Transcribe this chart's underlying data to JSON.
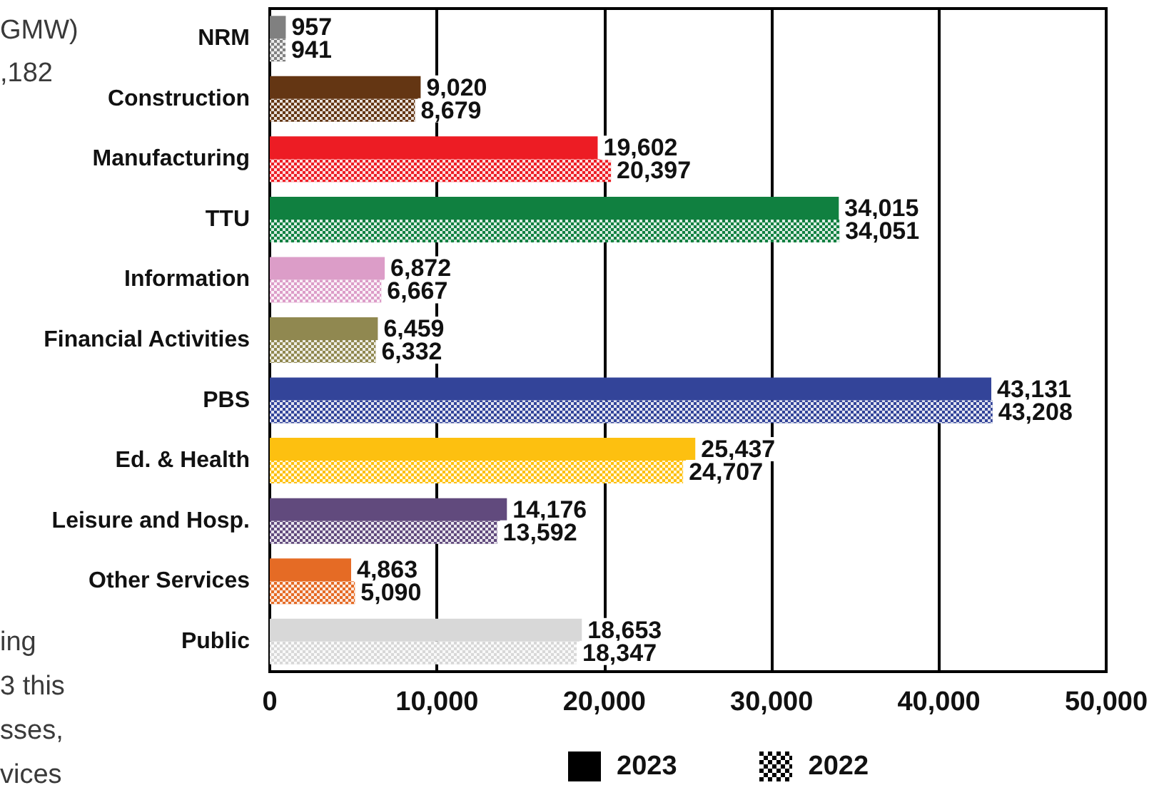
{
  "chart_data": {
    "type": "bar",
    "orientation": "horizontal",
    "categories": [
      "NRM",
      "Construction",
      "Manufacturing",
      "TTU",
      "Information",
      "Financial Activities",
      "PBS",
      "Ed. & Health",
      "Leisure and Hosp.",
      "Other Services",
      "Public"
    ],
    "series": [
      {
        "name": "2023",
        "color": "#000000",
        "colors": [
          "#808080",
          "#643613",
          "#ed1c24",
          "#108040",
          "#dc9dc8",
          "#908850",
          "#334499",
          "#fdc010",
          "#614a7d",
          "#e56b25",
          "#d8d8d8"
        ],
        "values": [
          957,
          9020,
          19602,
          34015,
          6872,
          6459,
          43131,
          25437,
          14176,
          4863,
          18653
        ],
        "value_labels": [
          "957",
          "9,020",
          "19,602",
          "34,015",
          "6,872",
          "6,459",
          "43,131",
          "25,437",
          "14,176",
          "4,863",
          "18,653"
        ]
      },
      {
        "name": "2022",
        "color": "#000000",
        "colors": [
          "#808080",
          "#643613",
          "#ed1c24",
          "#108040",
          "#dc9dc8",
          "#908850",
          "#334499",
          "#fdc010",
          "#614a7d",
          "#e56b25",
          "#d8d8d8"
        ],
        "values": [
          941,
          8679,
          20397,
          34051,
          6667,
          6332,
          43208,
          24707,
          13592,
          5090,
          18347
        ],
        "value_labels": [
          "941",
          "8,679",
          "20,397",
          "34,051",
          "6,667",
          "6,332",
          "43,208",
          "24,707",
          "13,592",
          "5,090",
          "18,347"
        ]
      }
    ],
    "xlim": [
      0,
      50000
    ],
    "xticks": [
      {
        "value": 0,
        "label": "0"
      },
      {
        "value": 10000,
        "label": "10,000"
      },
      {
        "value": 20000,
        "label": "20,000"
      },
      {
        "value": 30000,
        "label": "30,000"
      },
      {
        "value": 40000,
        "label": "40,000"
      },
      {
        "value": 50000,
        "label": "50,000"
      }
    ],
    "grid": "x",
    "legend": "bottom",
    "annotations": [
      "GMW)",
      ",182",
      "ing",
      "3 this",
      "sses,",
      "vices"
    ]
  }
}
